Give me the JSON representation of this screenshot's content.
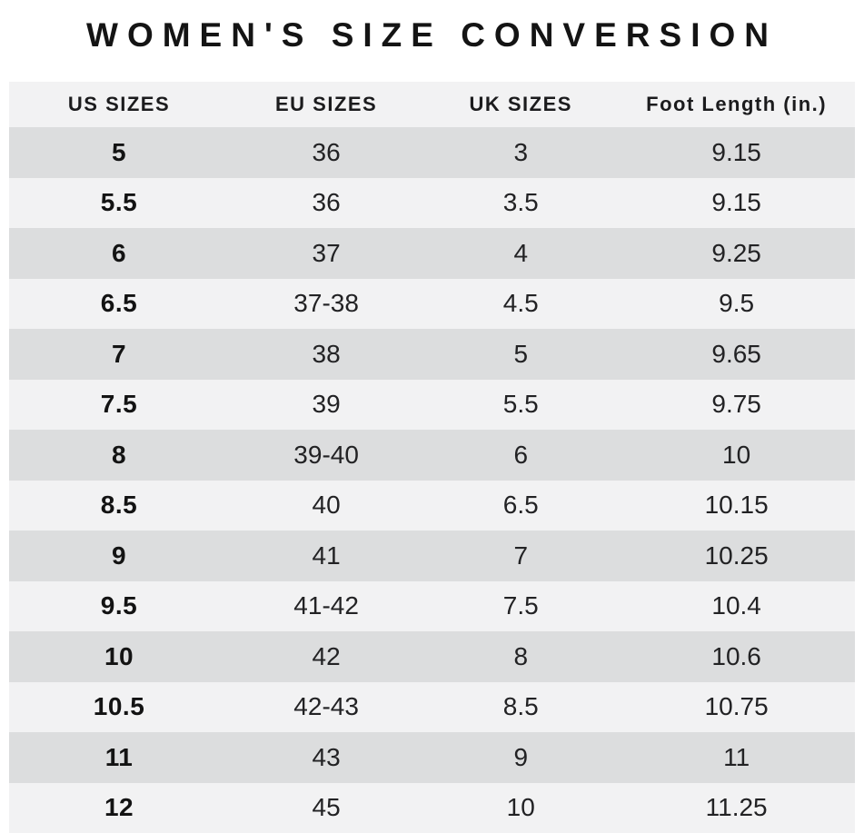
{
  "colors": {
    "background": "#ffffff",
    "row_dark": "#dcddde",
    "row_light": "#f2f2f3",
    "header_bg": "#f2f2f3",
    "title_text": "#141414",
    "body_text": "#222224"
  },
  "chart_data": {
    "type": "table",
    "title": "WOMEN'S SIZE CONVERSION",
    "columns": [
      "US SIZES",
      "EU SIZES",
      "UK SIZES",
      "Foot Length (in.)"
    ],
    "rows": [
      [
        "5",
        "36",
        "3",
        "9.15"
      ],
      [
        "5.5",
        "36",
        "3.5",
        "9.15"
      ],
      [
        "6",
        "37",
        "4",
        "9.25"
      ],
      [
        "6.5",
        "37-38",
        "4.5",
        "9.5"
      ],
      [
        "7",
        "38",
        "5",
        "9.65"
      ],
      [
        "7.5",
        "39",
        "5.5",
        "9.75"
      ],
      [
        "8",
        "39-40",
        "6",
        "10"
      ],
      [
        "8.5",
        "40",
        "6.5",
        "10.15"
      ],
      [
        "9",
        "41",
        "7",
        "10.25"
      ],
      [
        "9.5",
        "41-42",
        "7.5",
        "10.4"
      ],
      [
        "10",
        "42",
        "8",
        "10.6"
      ],
      [
        "10.5",
        "42-43",
        "8.5",
        "10.75"
      ],
      [
        "11",
        "43",
        "9",
        "11"
      ],
      [
        "12",
        "45",
        "10",
        "11.25"
      ]
    ],
    "layout": {
      "striped": true,
      "first_data_row_shade": "dark",
      "us_column_bold": true,
      "alignment": "center"
    }
  }
}
